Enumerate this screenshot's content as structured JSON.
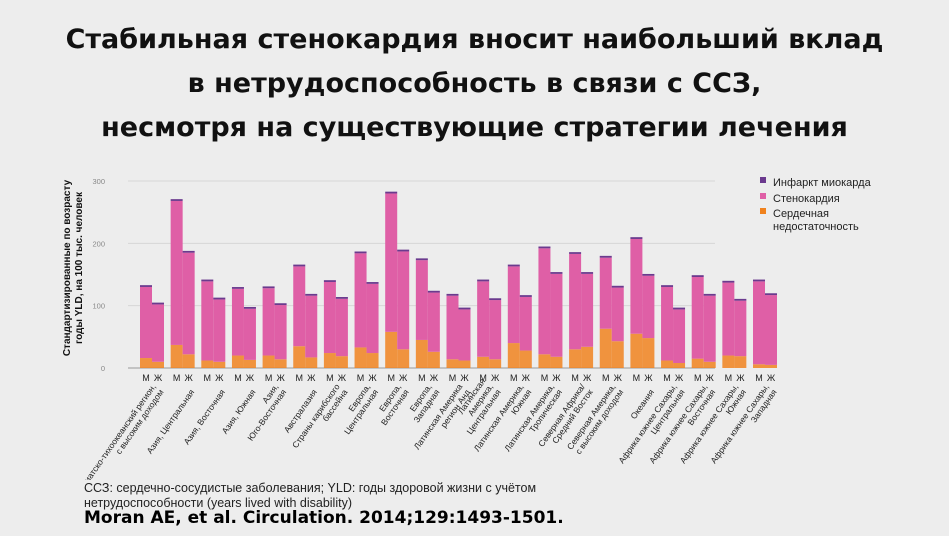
{
  "title_lines": [
    "Стабильная стенокардия вносит наибольший вклад",
    "в нетрудоспособность в связи с ССЗ,",
    "несмотря на существующие стратегии лечения"
  ],
  "footnote": "ССЗ: сердечно-сосудистые заболевания; YLD: годы здоровой жизни с учётом нетрудоспособности (years lived with disability)",
  "citation": "Moran AE, et al. Circulation. 2014;129:1493-1501.",
  "colors": {
    "mi": "#6b3a8e",
    "angina": "#df5fa6",
    "hf": "#f0821e",
    "grid": "#d6d6d6"
  },
  "chart_data": {
    "type": "bar",
    "stacked": true,
    "ylabel_lines": [
      "Стандартизированные по возрасту",
      "годы YLD, на 100 тыс. человек"
    ],
    "ylim": [
      0,
      300
    ],
    "yticks": [
      0,
      100,
      200,
      300
    ],
    "grid": true,
    "legend_position": "top-right",
    "sex_labels": [
      "М",
      "Ж"
    ],
    "series": [
      {
        "name": "Инфаркт миокарда",
        "key": "mi",
        "color": "#6b3a8e"
      },
      {
        "name": "Стенокардия",
        "key": "angina",
        "color": "#df5fa6"
      },
      {
        "name": "Сердечная недостаточность",
        "key": "hf",
        "color": "#f0821e"
      }
    ],
    "regions": [
      {
        "label_lines": [
          "Азиатско-тихоокеанский регион,",
          "с высоким доходом"
        ],
        "m": {
          "hf": 16,
          "total": 130
        },
        "f": {
          "hf": 10,
          "total": 102
        }
      },
      {
        "label_lines": [
          "Азия, Центральная"
        ],
        "m": {
          "hf": 37,
          "total": 268
        },
        "f": {
          "hf": 22,
          "total": 185
        }
      },
      {
        "label_lines": [
          "Азия, Восточная"
        ],
        "m": {
          "hf": 12,
          "total": 139
        },
        "f": {
          "hf": 10,
          "total": 110
        }
      },
      {
        "label_lines": [
          "Азия, Южная"
        ],
        "m": {
          "hf": 20,
          "total": 127
        },
        "f": {
          "hf": 13,
          "total": 95
        }
      },
      {
        "label_lines": [
          "Азия,",
          "Юго-Восточная"
        ],
        "m": {
          "hf": 20,
          "total": 128
        },
        "f": {
          "hf": 14,
          "total": 101
        }
      },
      {
        "label_lines": [
          "Австралазия"
        ],
        "m": {
          "hf": 35,
          "total": 163
        },
        "f": {
          "hf": 17,
          "total": 116
        }
      },
      {
        "label_lines": [
          "Страны карибского",
          "бассейна"
        ],
        "m": {
          "hf": 24,
          "total": 138
        },
        "f": {
          "hf": 19,
          "total": 111
        }
      },
      {
        "label_lines": [
          "Европа,",
          "Центральная"
        ],
        "m": {
          "hf": 33,
          "total": 184
        },
        "f": {
          "hf": 24,
          "total": 135
        }
      },
      {
        "label_lines": [
          "Европа,",
          "Восточная"
        ],
        "m": {
          "hf": 58,
          "total": 280
        },
        "f": {
          "hf": 30,
          "total": 187
        }
      },
      {
        "label_lines": [
          "Европа,",
          "Западная"
        ],
        "m": {
          "hf": 45,
          "total": 173
        },
        "f": {
          "hf": 26,
          "total": 121
        }
      },
      {
        "label_lines": [
          "Латинская Америка",
          "регион Анд"
        ],
        "m": {
          "hf": 14,
          "total": 116
        },
        "f": {
          "hf": 12,
          "total": 94
        }
      },
      {
        "label_lines": [
          "Латинская",
          "Америка,",
          "Центральная"
        ],
        "m": {
          "hf": 18,
          "total": 139
        },
        "f": {
          "hf": 14,
          "total": 109
        }
      },
      {
        "label_lines": [
          "Латинская Америка,",
          "Южная"
        ],
        "m": {
          "hf": 40,
          "total": 163
        },
        "f": {
          "hf": 28,
          "total": 114
        }
      },
      {
        "label_lines": [
          "Латинская Америка,",
          "Тропическая"
        ],
        "m": {
          "hf": 22,
          "total": 192
        },
        "f": {
          "hf": 18,
          "total": 151
        }
      },
      {
        "label_lines": [
          "Северная Африка/",
          "Средний Восток"
        ],
        "m": {
          "hf": 30,
          "total": 183
        },
        "f": {
          "hf": 34,
          "total": 151
        }
      },
      {
        "label_lines": [
          "Северная Америка,",
          "с высоким доходом"
        ],
        "m": {
          "hf": 63,
          "total": 177
        },
        "f": {
          "hf": 43,
          "total": 129
        }
      },
      {
        "label_lines": [
          "Океания"
        ],
        "m": {
          "hf": 55,
          "total": 207
        },
        "f": {
          "hf": 48,
          "total": 148
        }
      },
      {
        "label_lines": [
          "Африка южнее Сахары,",
          "Центральная"
        ],
        "m": {
          "hf": 12,
          "total": 130
        },
        "f": {
          "hf": 8,
          "total": 94
        }
      },
      {
        "label_lines": [
          "Африка южнее Сахары,",
          "Восточная"
        ],
        "m": {
          "hf": 15,
          "total": 146
        },
        "f": {
          "hf": 10,
          "total": 116
        }
      },
      {
        "label_lines": [
          "Африка южнее Сахары,",
          "Южная"
        ],
        "m": {
          "hf": 20,
          "total": 137
        },
        "f": {
          "hf": 19,
          "total": 108
        }
      },
      {
        "label_lines": [
          "Африка южнее Сахары,",
          "Западная"
        ],
        "m": {
          "hf": 6,
          "total": 139
        },
        "f": {
          "hf": 5,
          "total": 117
        }
      }
    ]
  }
}
